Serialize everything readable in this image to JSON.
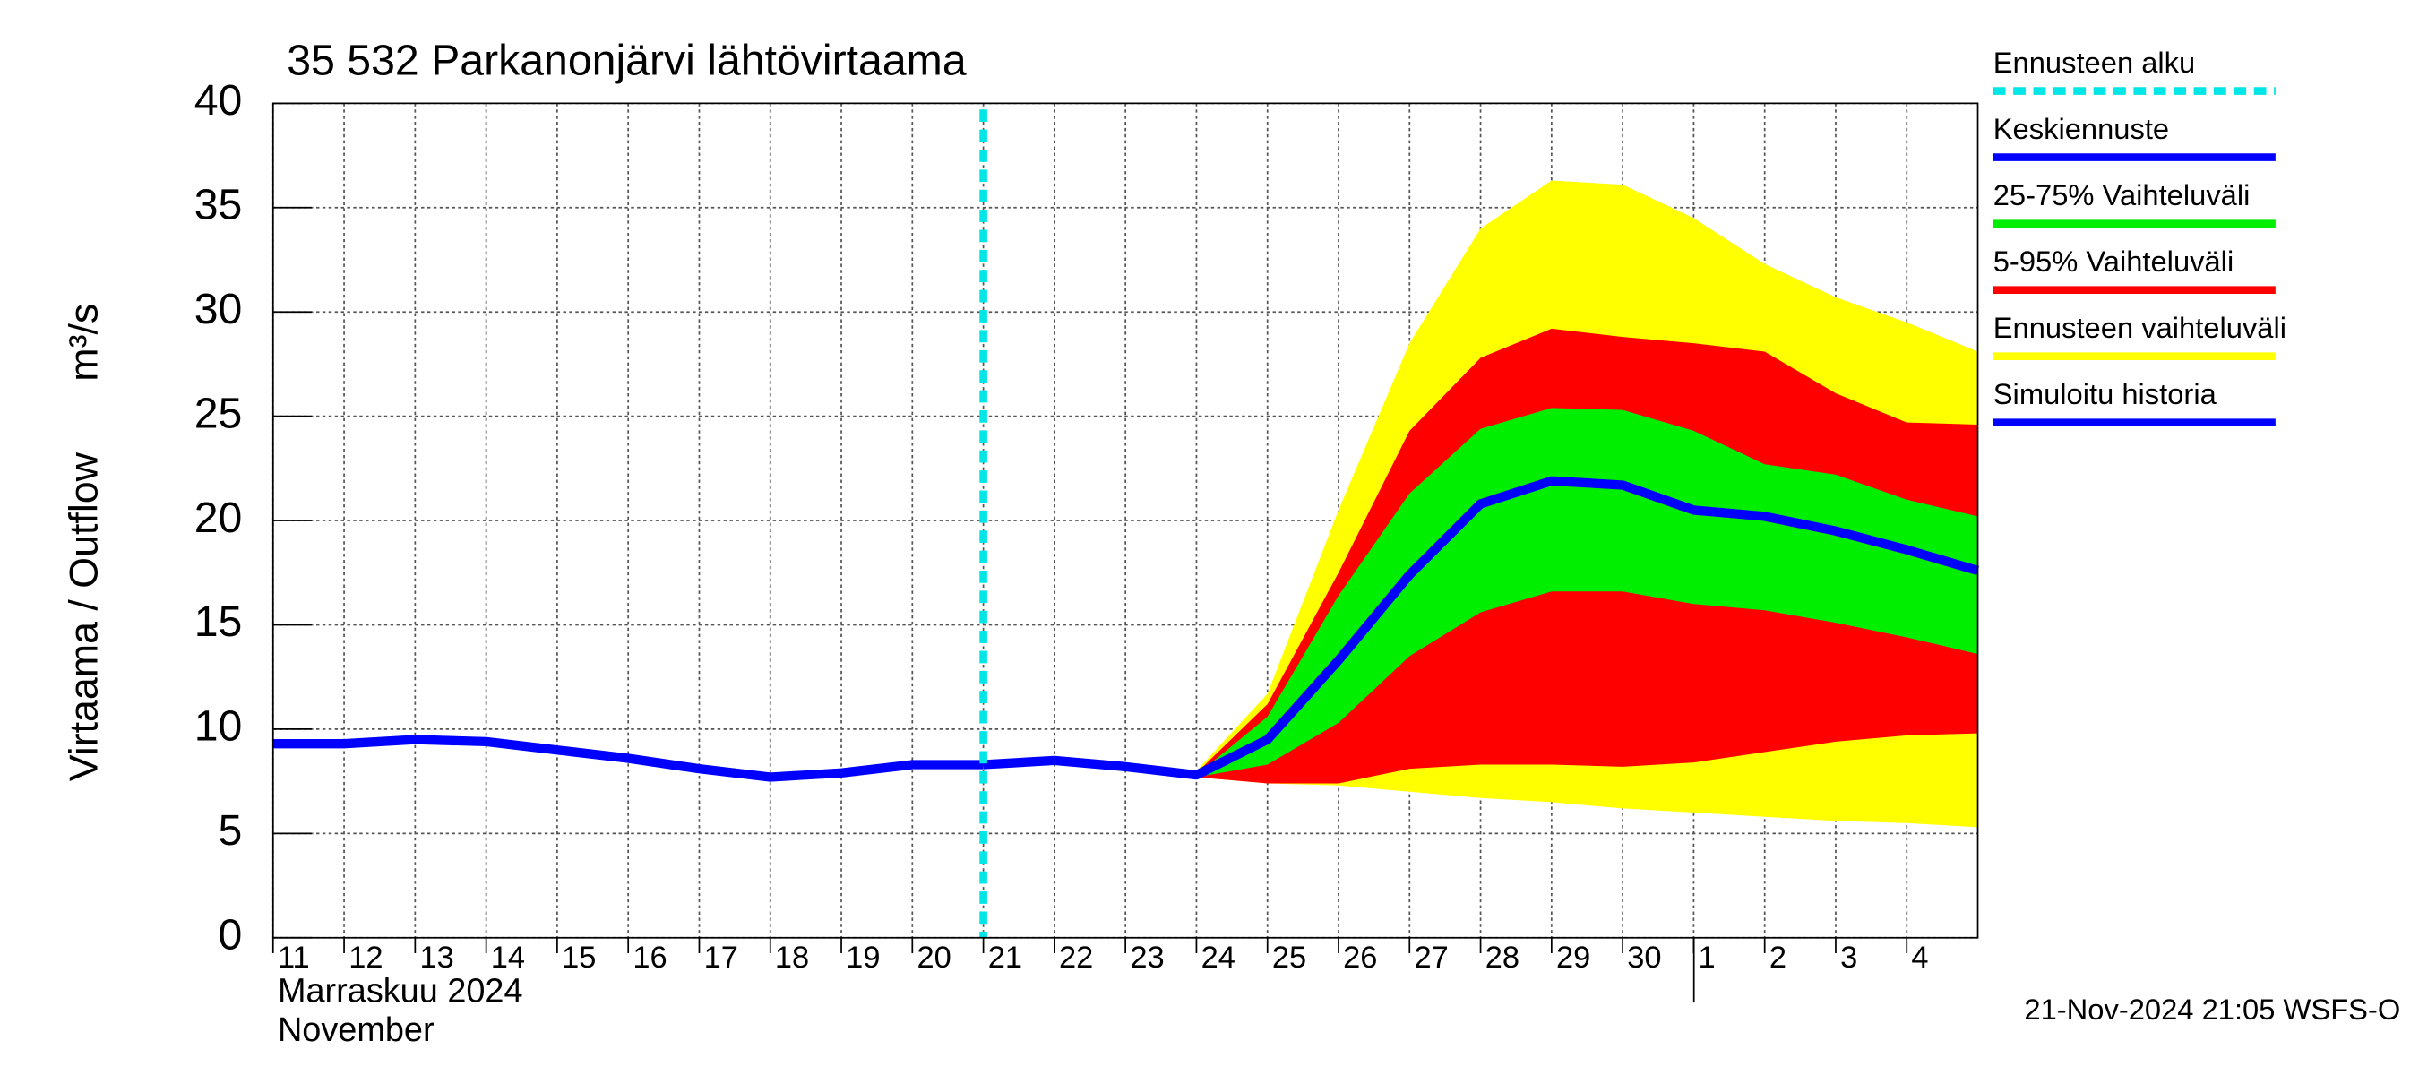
{
  "chart_data": {
    "type": "line",
    "title": "35 532 Parkanonjärvi lähtövirtaama",
    "y_label": "Virtaama / Outflow",
    "y_unit": "m³/s",
    "x_label_fi": "Marraskuu 2024",
    "x_label_en": "November",
    "footer": "21-Nov-2024 21:05 WSFS-O",
    "grid": true,
    "x": [
      "2024-11-11",
      "2024-11-12",
      "2024-11-13",
      "2024-11-14",
      "2024-11-15",
      "2024-11-16",
      "2024-11-17",
      "2024-11-18",
      "2024-11-19",
      "2024-11-20",
      "2024-11-21",
      "2024-11-22",
      "2024-11-23",
      "2024-11-24",
      "2024-11-25",
      "2024-11-26",
      "2024-11-27",
      "2024-11-28",
      "2024-11-29",
      "2024-11-30",
      "2024-12-01",
      "2024-12-02",
      "2024-12-03",
      "2024-12-04",
      "2024-12-05"
    ],
    "xlim": [
      "2024-11-11",
      "2024-12-05"
    ],
    "xticks": [
      {
        "value": "2024-11-11",
        "label": "11"
      },
      {
        "value": "2024-11-12",
        "label": "12"
      },
      {
        "value": "2024-11-13",
        "label": "13"
      },
      {
        "value": "2024-11-14",
        "label": "14"
      },
      {
        "value": "2024-11-15",
        "label": "15"
      },
      {
        "value": "2024-11-16",
        "label": "16"
      },
      {
        "value": "2024-11-17",
        "label": "17"
      },
      {
        "value": "2024-11-18",
        "label": "18"
      },
      {
        "value": "2024-11-19",
        "label": "19"
      },
      {
        "value": "2024-11-20",
        "label": "20"
      },
      {
        "value": "2024-11-21",
        "label": "21"
      },
      {
        "value": "2024-11-22",
        "label": "22"
      },
      {
        "value": "2024-11-23",
        "label": "23"
      },
      {
        "value": "2024-11-24",
        "label": "24"
      },
      {
        "value": "2024-11-25",
        "label": "25"
      },
      {
        "value": "2024-11-26",
        "label": "26"
      },
      {
        "value": "2024-11-27",
        "label": "27"
      },
      {
        "value": "2024-11-28",
        "label": "28"
      },
      {
        "value": "2024-11-29",
        "label": "29"
      },
      {
        "value": "2024-11-30",
        "label": "30"
      },
      {
        "value": "2024-12-01",
        "label": "1"
      },
      {
        "value": "2024-12-02",
        "label": "2"
      },
      {
        "value": "2024-12-03",
        "label": "3"
      },
      {
        "value": "2024-12-04",
        "label": "4"
      }
    ],
    "ylim": [
      0,
      40
    ],
    "yticks": [
      0,
      5,
      10,
      15,
      20,
      25,
      30,
      35,
      40
    ],
    "forecast_start": {
      "name": "Ennusteen alku",
      "x": "2024-11-21",
      "color": "#00e5e5"
    },
    "series": [
      {
        "name": "Keskiennuste",
        "kind": "line",
        "color": "#0000ff",
        "values": [
          null,
          null,
          null,
          null,
          null,
          null,
          null,
          null,
          null,
          null,
          8.3,
          8.5,
          8.2,
          7.8,
          9.5,
          13.3,
          17.4,
          20.8,
          21.9,
          21.7,
          20.5,
          20.2,
          19.5,
          18.6,
          17.6
        ]
      },
      {
        "name": "25-75% Vaihteluväli",
        "kind": "band",
        "color": "#00ee00",
        "low": [
          null,
          null,
          null,
          null,
          null,
          null,
          null,
          null,
          null,
          null,
          8.3,
          8.5,
          8.2,
          7.7,
          8.3,
          10.3,
          13.5,
          15.6,
          16.6,
          16.6,
          16.0,
          15.7,
          15.1,
          14.4,
          13.6
        ],
        "high": [
          null,
          null,
          null,
          null,
          null,
          null,
          null,
          null,
          null,
          null,
          8.3,
          8.5,
          8.2,
          7.8,
          10.6,
          16.4,
          21.3,
          24.4,
          25.4,
          25.3,
          24.3,
          22.7,
          22.2,
          21.0,
          20.2
        ]
      },
      {
        "name": "5-95% Vaihteluväli",
        "kind": "band",
        "color": "#ff0000",
        "low": [
          null,
          null,
          null,
          null,
          null,
          null,
          null,
          null,
          null,
          null,
          8.3,
          8.5,
          8.2,
          7.7,
          7.4,
          7.4,
          8.1,
          8.3,
          8.3,
          8.2,
          8.4,
          8.9,
          9.4,
          9.7,
          9.8
        ],
        "high": [
          null,
          null,
          null,
          null,
          null,
          null,
          null,
          null,
          null,
          null,
          8.3,
          8.5,
          8.2,
          7.9,
          11.2,
          17.5,
          24.3,
          27.8,
          29.2,
          28.8,
          28.5,
          28.1,
          26.1,
          24.7,
          24.6
        ]
      },
      {
        "name": "Ennusteen vaihteluväli",
        "kind": "band",
        "color": "#ffff00",
        "low": [
          null,
          null,
          null,
          null,
          null,
          null,
          null,
          null,
          null,
          null,
          8.3,
          8.5,
          8.2,
          7.7,
          7.4,
          7.3,
          7.0,
          6.7,
          6.5,
          6.2,
          6.0,
          5.8,
          5.6,
          5.5,
          5.3
        ],
        "high": [
          null,
          null,
          null,
          null,
          null,
          null,
          null,
          null,
          null,
          null,
          8.3,
          8.5,
          8.3,
          8.0,
          11.7,
          20.5,
          28.5,
          34.0,
          36.3,
          36.1,
          34.5,
          32.3,
          30.7,
          29.5,
          28.1
        ]
      },
      {
        "name": "Simuloitu historia",
        "kind": "line",
        "color": "#0000ff",
        "values": [
          9.3,
          9.3,
          9.5,
          9.4,
          9.0,
          8.6,
          8.1,
          7.7,
          7.9,
          8.3,
          8.3,
          null,
          null,
          null,
          null,
          null,
          null,
          null,
          null,
          null,
          null,
          null,
          null,
          null,
          null
        ]
      }
    ]
  }
}
